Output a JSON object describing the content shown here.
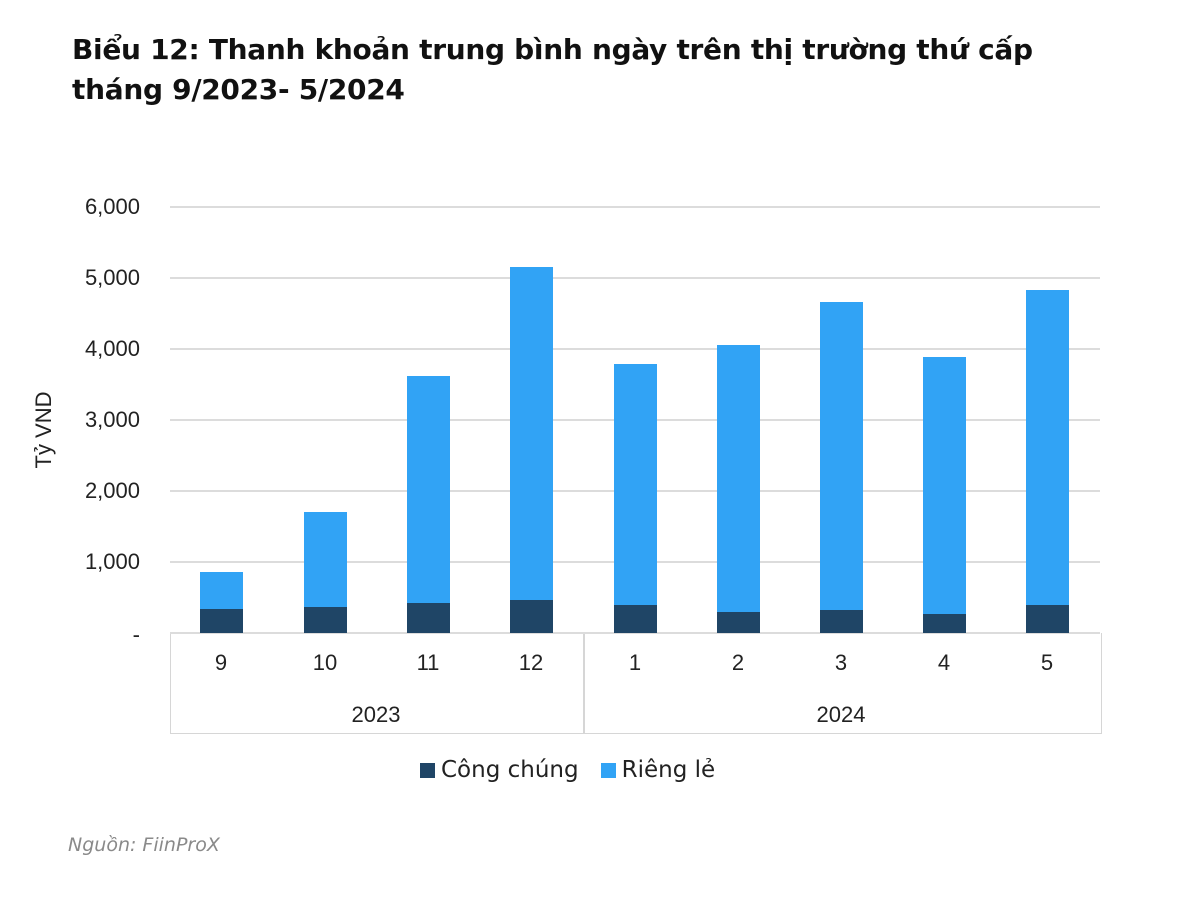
{
  "title_line1": "Biểu 12: Thanh khoản trung bình ngày trên thị trường thứ cấp",
  "title_line2": "tháng 9/2023- 5/2024",
  "source": "Nguồn: FiinProX",
  "colors": {
    "cong_chung": "#1f4566",
    "rieng_le": "#31a3f5",
    "grid": "#dcdcdc"
  },
  "chart_data": {
    "type": "bar",
    "stacked": true,
    "title": "Biểu 12: Thanh khoản trung bình ngày trên thị trường thứ cấp tháng 9/2023- 5/2024",
    "xlabel": "",
    "ylabel": "Tỷ VND",
    "ylim": [
      0,
      6000
    ],
    "yticks": [
      "-",
      "1,000",
      "2,000",
      "3,000",
      "4,000",
      "5,000",
      "6,000"
    ],
    "grid": true,
    "legend_position": "bottom",
    "categories": [
      "9",
      "10",
      "11",
      "12",
      "1",
      "2",
      "3",
      "4",
      "5"
    ],
    "groups": [
      {
        "label": "2023",
        "categories": [
          "9",
          "10",
          "11",
          "12"
        ]
      },
      {
        "label": "2024",
        "categories": [
          "1",
          "2",
          "3",
          "4",
          "5"
        ]
      }
    ],
    "series": [
      {
        "name": "Công chúng",
        "color": "#1f4566",
        "values": [
          340,
          370,
          420,
          460,
          390,
          300,
          320,
          270,
          390
        ]
      },
      {
        "name": "Riêng lẻ",
        "color": "#31a3f5",
        "values": [
          520,
          1330,
          3200,
          4690,
          3400,
          3760,
          4340,
          3620,
          4440
        ]
      }
    ],
    "totals": [
      860,
      1700,
      3620,
      5150,
      3790,
      4060,
      4660,
      3890,
      4830
    ]
  }
}
